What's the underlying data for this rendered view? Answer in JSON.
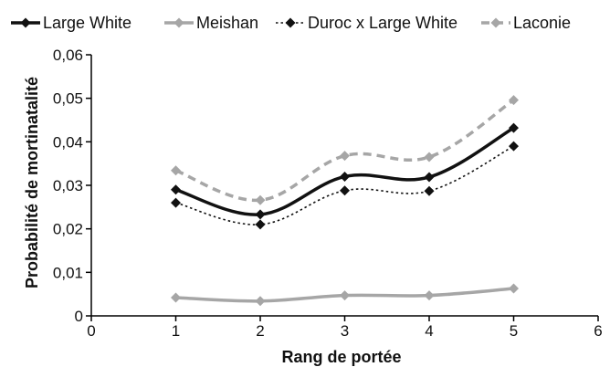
{
  "chart_data": {
    "type": "line",
    "xlabel": "Rang de portée",
    "ylabel": "Probabilité de mortinatalité",
    "xlim": [
      0,
      6
    ],
    "ylim": [
      0,
      0.06
    ],
    "x_ticks": [
      0,
      1,
      2,
      3,
      4,
      5,
      6
    ],
    "x_tick_labels": [
      "0",
      "1",
      "2",
      "3",
      "4",
      "5",
      "6"
    ],
    "y_ticks": [
      0,
      0.01,
      0.02,
      0.03,
      0.04,
      0.05,
      0.06
    ],
    "y_tick_labels": [
      "0",
      "0,01",
      "0,02",
      "0,03",
      "0,04",
      "0,05",
      "0,06"
    ],
    "grid": false,
    "legend_position": "top",
    "x": [
      1,
      2,
      3,
      4,
      5
    ],
    "series": [
      {
        "name": "Large White",
        "values": [
          0.029,
          0.0233,
          0.032,
          0.0319,
          0.0432
        ],
        "color": "#111111",
        "line_style": "solid-thick",
        "marker": "diamond"
      },
      {
        "name": "Meishan",
        "values": [
          0.0042,
          0.0034,
          0.0047,
          0.0047,
          0.0063
        ],
        "color": "#a6a6a6",
        "line_style": "solid-thick",
        "marker": "diamond"
      },
      {
        "name": "Duroc x Large White",
        "values": [
          0.026,
          0.021,
          0.0288,
          0.0287,
          0.039
        ],
        "color": "#111111",
        "line_style": "dotted",
        "marker": "diamond"
      },
      {
        "name": "Laconie",
        "values": [
          0.0334,
          0.0266,
          0.0368,
          0.0365,
          0.0496
        ],
        "color": "#a6a6a6",
        "line_style": "dashed",
        "marker": "diamond"
      }
    ]
  }
}
